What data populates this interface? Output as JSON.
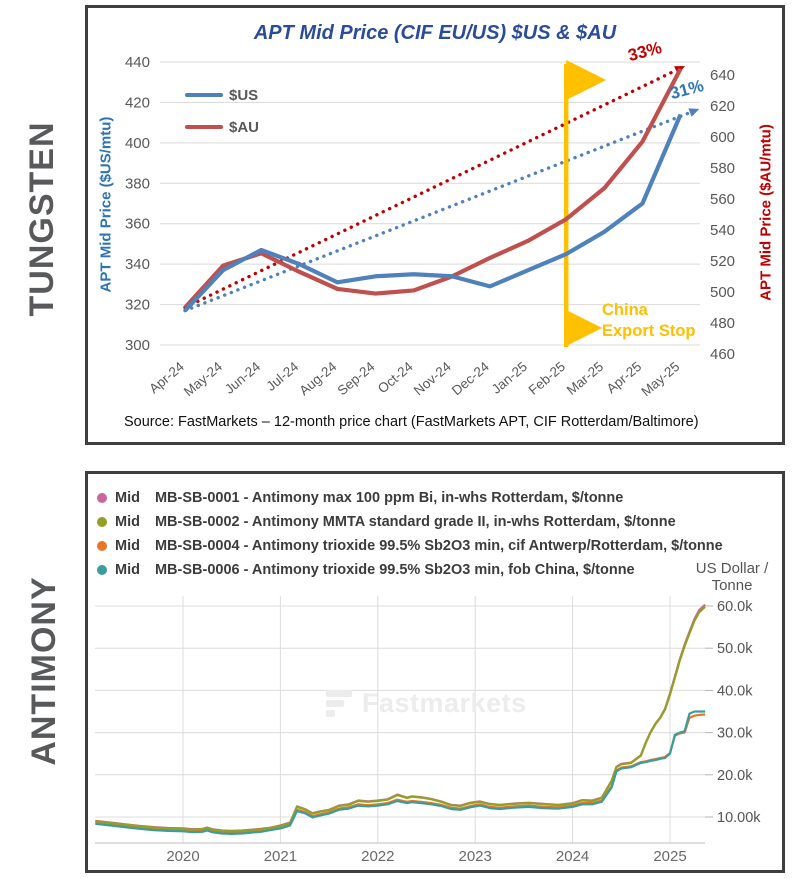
{
  "page": {
    "section_labels": [
      "TUNGSTEN",
      "ANTIMONY"
    ]
  },
  "chart_data": [
    {
      "type": "line",
      "title": "APT Mid Price (CIF EU/US) $US & $AU",
      "categories": [
        "Apr-24",
        "May-24",
        "Jun-24",
        "Jul-24",
        "Aug-24",
        "Sep-24",
        "Oct-24",
        "Nov-24",
        "Dec-24",
        "Jan-25",
        "Feb-25",
        "Mar-25",
        "Apr-25",
        "May-25"
      ],
      "series": [
        {
          "name": "$US",
          "axis": "left",
          "color": "#4F81BD",
          "values": [
            317,
            337,
            347,
            340,
            331,
            334,
            335,
            334,
            329,
            337,
            345,
            356,
            370,
            414
          ]
        },
        {
          "name": "$AU",
          "axis": "right",
          "color": "#C0504D",
          "values": [
            490,
            517,
            525,
            513,
            502,
            499,
            501,
            510,
            522,
            533,
            547,
            567,
            597,
            644
          ]
        }
      ],
      "trendlines": [
        {
          "series": "$AU",
          "axis": "right",
          "color": "#C00000",
          "from": 490,
          "to": 643,
          "label": "33%"
        },
        {
          "series": "$US",
          "axis": "left",
          "color": "#4F81BD",
          "from": 317,
          "to": 415,
          "label": "31%"
        }
      ],
      "left_axis": {
        "label": "APT Mid Price ($US/mtu)",
        "min": 300,
        "max": 440,
        "step": 20,
        "color": "#2E74B5"
      },
      "right_axis": {
        "label": "APT Mid Price ($AU/mtu)",
        "min": 460,
        "max": 640,
        "step": 20,
        "color": "#C00000"
      },
      "event_marker": {
        "label": "China Export Stop",
        "label_line1": "China",
        "label_line2": "Export Stop",
        "position": "Feb-25",
        "color": "#FFC000"
      },
      "source": "Source: FastMarkets – 12-month price chart (FastMarkets APT, CIF Rotterdam/Baltimore)",
      "grid": true,
      "legend_position": "top-left"
    },
    {
      "type": "line",
      "ylabel": "US Dollar / Tonne",
      "y_axis_title_line1": "US Dollar /",
      "y_axis_title_line2": "Tonne",
      "watermark": "Fastmarkets",
      "x_ticks": [
        2020,
        2021,
        2022,
        2023,
        2024,
        2025
      ],
      "y_ticks": [
        "60.0k",
        "50.0k",
        "40.0k",
        "30.0k",
        "20.0k",
        "10.00k"
      ],
      "y_tick_values": [
        60,
        50,
        40,
        30,
        20,
        10
      ],
      "ylim_thousands": [
        3.8,
        62
      ],
      "xlim": [
        2019.1,
        2025.4
      ],
      "x": [
        2019.1,
        2019.25,
        2019.4,
        2019.55,
        2019.7,
        2019.85,
        2020.0,
        2020.1,
        2020.2,
        2020.25,
        2020.3,
        2020.4,
        2020.5,
        2020.6,
        2020.7,
        2020.8,
        2020.9,
        2021.0,
        2021.1,
        2021.17,
        2021.25,
        2021.33,
        2021.4,
        2021.5,
        2021.6,
        2021.7,
        2021.8,
        2021.9,
        2022.0,
        2022.1,
        2022.2,
        2022.3,
        2022.35,
        2022.45,
        2022.55,
        2022.65,
        2022.75,
        2022.85,
        2022.95,
        2023.05,
        2023.15,
        2023.25,
        2023.4,
        2023.55,
        2023.7,
        2023.85,
        2024.0,
        2024.1,
        2024.2,
        2024.3,
        2024.4,
        2024.45,
        2024.5,
        2024.6,
        2024.7,
        2024.75,
        2024.8,
        2024.85,
        2024.9,
        2024.95,
        2025.0,
        2025.05,
        2025.1,
        2025.15,
        2025.2,
        2025.25,
        2025.3,
        2025.36
      ],
      "series": [
        {
          "name": "MB-SB-0001",
          "legend_prefix": "Mid",
          "description": "MB-SB-0001 - Antimony max 100 ppm Bi, in-whs Rotterdam, $/tonne",
          "color": "#C9669E",
          "unit": "$/tonne (thousands)",
          "values": [
            9.1,
            8.7,
            8.3,
            7.9,
            7.6,
            7.4,
            7.3,
            7.1,
            7.2,
            7.5,
            7.1,
            6.8,
            6.7,
            6.8,
            7.0,
            7.2,
            7.5,
            8.0,
            8.7,
            12.5,
            11.9,
            10.9,
            11.3,
            11.7,
            12.7,
            13.0,
            13.9,
            13.7,
            13.9,
            14.2,
            15.3,
            14.6,
            14.9,
            14.7,
            14.3,
            13.7,
            12.9,
            12.7,
            13.4,
            13.7,
            13.1,
            12.9,
            13.2,
            13.4,
            13.1,
            12.9,
            13.3,
            14.0,
            13.9,
            14.6,
            18.6,
            21.9,
            22.6,
            22.9,
            24.6,
            27.6,
            30.1,
            32.1,
            33.6,
            35.7,
            39.3,
            43.3,
            47.3,
            50.8,
            53.9,
            56.9,
            59.0,
            60.3
          ]
        },
        {
          "name": "MB-SB-0002",
          "legend_prefix": "Mid",
          "description": "MB-SB-0002 - Antimony MMTA standard grade II, in-whs Rotterdam, $/tonne",
          "color": "#93A021",
          "unit": "$/tonne (thousands)",
          "values": [
            9.0,
            8.6,
            8.2,
            7.8,
            7.5,
            7.3,
            7.2,
            7.0,
            7.1,
            7.4,
            7.0,
            6.7,
            6.6,
            6.7,
            6.9,
            7.1,
            7.4,
            7.9,
            8.6,
            12.4,
            11.8,
            10.8,
            11.2,
            11.6,
            12.6,
            12.9,
            13.8,
            13.6,
            13.8,
            14.1,
            15.2,
            14.5,
            14.8,
            14.6,
            14.2,
            13.6,
            12.8,
            12.6,
            13.3,
            13.6,
            13.0,
            12.8,
            13.1,
            13.3,
            13.0,
            12.8,
            13.2,
            13.9,
            13.8,
            14.5,
            18.5,
            21.8,
            22.5,
            22.8,
            24.5,
            27.5,
            30.0,
            32.0,
            33.5,
            35.5,
            39.0,
            43.0,
            47.0,
            50.5,
            53.5,
            56.5,
            58.5,
            59.8
          ]
        },
        {
          "name": "MB-SB-0004",
          "legend_prefix": "Mid",
          "description": "MB-SB-0004 - Antimony trioxide 99.5% Sb2O3 min, cif Antwerp/Rotterdam, $/tonne",
          "color": "#E87629",
          "unit": "$/tonne (thousands)",
          "values": [
            8.7,
            8.3,
            7.9,
            7.5,
            7.2,
            7.0,
            6.9,
            6.7,
            6.8,
            7.1,
            6.7,
            6.4,
            6.3,
            6.4,
            6.6,
            6.8,
            7.2,
            7.6,
            8.3,
            11.7,
            11.2,
            10.2,
            10.6,
            11.1,
            12.0,
            12.3,
            13.0,
            12.8,
            13.0,
            13.3,
            14.1,
            13.6,
            13.8,
            13.6,
            13.3,
            12.9,
            12.2,
            12.0,
            12.6,
            13.0,
            12.4,
            12.2,
            12.5,
            12.7,
            12.4,
            12.3,
            12.7,
            13.3,
            13.3,
            13.9,
            17.3,
            21.0,
            21.7,
            22.0,
            23.0,
            23.2,
            23.5,
            23.7,
            24.0,
            24.2,
            25.2,
            29.3,
            29.8,
            30.0,
            33.5,
            34.0,
            34.2,
            34.3
          ]
        },
        {
          "name": "MB-SB-0006",
          "legend_prefix": "Mid",
          "description": "MB-SB-0006 - Antimony trioxide 99.5% Sb2O3 min, fob China, $/tonne",
          "color": "#3B9D9B",
          "unit": "$/tonne (thousands)",
          "values": [
            8.4,
            8.0,
            7.6,
            7.2,
            6.9,
            6.7,
            6.6,
            6.4,
            6.5,
            6.8,
            6.4,
            6.1,
            6.0,
            6.1,
            6.3,
            6.5,
            6.9,
            7.3,
            8.0,
            11.4,
            10.9,
            9.9,
            10.3,
            10.8,
            11.7,
            12.0,
            12.7,
            12.5,
            12.7,
            13.0,
            13.8,
            13.3,
            13.5,
            13.3,
            13.0,
            12.6,
            11.9,
            11.7,
            12.3,
            12.7,
            12.1,
            11.9,
            12.2,
            12.4,
            12.1,
            12.0,
            12.4,
            13.0,
            13.0,
            13.6,
            17.0,
            20.8,
            21.5,
            21.8,
            22.8,
            23.0,
            23.3,
            23.5,
            23.8,
            24.0,
            25.0,
            29.5,
            30.0,
            30.3,
            34.5,
            35.0,
            35.0,
            35.0
          ]
        }
      ],
      "grid": true,
      "legend_position": "top-left"
    }
  ]
}
